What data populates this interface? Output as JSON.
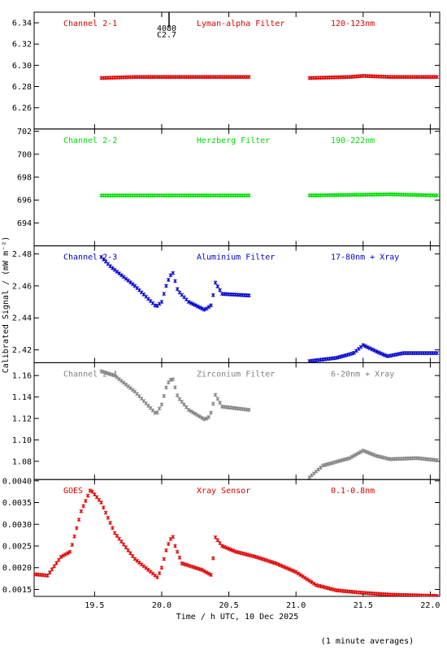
{
  "figure": {
    "ylabel": "Calibrated Signal / (mW m⁻²)",
    "xlabel": "Time / h UTC, 10 Dec 2025",
    "footnote": "(1 minute averages)",
    "marker": {
      "top": "4080",
      "bottom": "C2.7"
    }
  },
  "chart_data": [
    {
      "type": "scatter",
      "channel": "Channel 2-1",
      "filter": "Lyman-alpha Filter",
      "band": "120-123nm",
      "color": "#dd0000",
      "ylim": [
        6.24,
        6.35
      ],
      "yticks": [
        6.26,
        6.28,
        6.3,
        6.32,
        6.34
      ],
      "ytick_labels": [
        "6.26",
        "6.28",
        "6.30",
        "6.32",
        "6.34"
      ],
      "segments": [
        {
          "x_range": [
            19.55,
            20.65
          ],
          "y": [
            [
              19.55,
              6.288
            ],
            [
              19.8,
              6.289
            ],
            [
              20.2,
              6.289
            ],
            [
              20.65,
              6.289
            ]
          ]
        },
        {
          "x_range": [
            21.1,
            22.05
          ],
          "y": [
            [
              21.1,
              6.288
            ],
            [
              21.4,
              6.289
            ],
            [
              21.5,
              6.29
            ],
            [
              21.7,
              6.289
            ],
            [
              22.05,
              6.289
            ]
          ]
        }
      ]
    },
    {
      "type": "scatter",
      "channel": "Channel 2-2",
      "filter": "Herzberg Filter",
      "band": "190-222nm",
      "color": "#00dd00",
      "ylim": [
        692.0,
        702.2
      ],
      "yticks": [
        694,
        696,
        698,
        700,
        702
      ],
      "ytick_labels": [
        "694",
        "696",
        "698",
        "700",
        "702"
      ],
      "segments": [
        {
          "x_range": [
            19.55,
            20.65
          ],
          "y": [
            [
              19.55,
              696.4
            ],
            [
              20.65,
              696.4
            ]
          ]
        },
        {
          "x_range": [
            21.1,
            22.05
          ],
          "y": [
            [
              21.1,
              696.4
            ],
            [
              21.7,
              696.5
            ],
            [
              22.05,
              696.4
            ]
          ]
        }
      ]
    },
    {
      "type": "scatter",
      "channel": "Channel 2-3",
      "filter": "Aluminium Filter",
      "band": "17-80nm + Xray",
      "color": "#0000cc",
      "ylim": [
        2.412,
        2.485
      ],
      "yticks": [
        2.42,
        2.44,
        2.46,
        2.48
      ],
      "ytick_labels": [
        "2.42",
        "2.44",
        "2.46",
        "2.48"
      ],
      "segments": [
        {
          "x_range": [
            19.55,
            20.65
          ],
          "y": [
            [
              19.55,
              2.478
            ],
            [
              19.62,
              2.472
            ],
            [
              19.8,
              2.46
            ],
            [
              19.96,
              2.447
            ],
            [
              20.0,
              2.45
            ],
            [
              20.04,
              2.462
            ],
            [
              20.08,
              2.469
            ],
            [
              20.12,
              2.457
            ],
            [
              20.2,
              2.45
            ],
            [
              20.32,
              2.445
            ],
            [
              20.37,
              2.448
            ],
            [
              20.4,
              2.462
            ],
            [
              20.45,
              2.455
            ],
            [
              20.65,
              2.454
            ]
          ]
        },
        {
          "x_range": [
            21.1,
            22.05
          ],
          "y": [
            [
              21.1,
              2.413
            ],
            [
              21.3,
              2.415
            ],
            [
              21.43,
              2.418
            ],
            [
              21.5,
              2.423
            ],
            [
              21.6,
              2.419
            ],
            [
              21.68,
              2.416
            ],
            [
              21.8,
              2.418
            ],
            [
              21.9,
              2.418
            ],
            [
              22.05,
              2.418
            ]
          ]
        }
      ]
    },
    {
      "type": "scatter",
      "channel": "Channel 2-4",
      "filter": "Zirconium Filter",
      "band": "6-20nm + Xray",
      "color": "#808080",
      "ylim": [
        1.063,
        1.172
      ],
      "yticks": [
        1.08,
        1.1,
        1.12,
        1.14,
        1.16
      ],
      "ytick_labels": [
        "1.08",
        "1.10",
        "1.12",
        "1.14",
        "1.16"
      ],
      "segments": [
        {
          "x_range": [
            19.55,
            20.65
          ],
          "y": [
            [
              19.55,
              1.164
            ],
            [
              19.65,
              1.16
            ],
            [
              19.8,
              1.145
            ],
            [
              19.96,
              1.124
            ],
            [
              20.0,
              1.133
            ],
            [
              20.04,
              1.152
            ],
            [
              20.08,
              1.158
            ],
            [
              20.12,
              1.14
            ],
            [
              20.2,
              1.128
            ],
            [
              20.32,
              1.119
            ],
            [
              20.36,
              1.122
            ],
            [
              20.4,
              1.142
            ],
            [
              20.45,
              1.131
            ],
            [
              20.65,
              1.128
            ]
          ]
        },
        {
          "x_range": [
            21.1,
            22.05
          ],
          "y": [
            [
              21.1,
              1.065
            ],
            [
              21.2,
              1.076
            ],
            [
              21.4,
              1.083
            ],
            [
              21.5,
              1.09
            ],
            [
              21.6,
              1.085
            ],
            [
              21.7,
              1.082
            ],
            [
              21.9,
              1.083
            ],
            [
              22.05,
              1.081
            ]
          ]
        }
      ]
    },
    {
      "type": "scatter",
      "channel": "GOES",
      "filter": "Xray Sensor",
      "band": "0.1-0.8nm",
      "color": "#dd0000",
      "ylim": [
        0.00134,
        0.00403
      ],
      "yticks": [
        0.0015,
        0.002,
        0.0025,
        0.003,
        0.0035,
        0.004
      ],
      "ytick_labels": [
        "0.0015",
        "0.0020",
        "0.0025",
        "0.0030",
        "0.0035",
        "0.0040"
      ],
      "segments": [
        {
          "x_range": [
            19.05,
            22.05
          ],
          "y": [
            [
              19.05,
              0.00185
            ],
            [
              19.15,
              0.00182
            ],
            [
              19.25,
              0.00225
            ],
            [
              19.32,
              0.00237
            ],
            [
              19.4,
              0.0033
            ],
            [
              19.47,
              0.0038
            ],
            [
              19.55,
              0.0035
            ],
            [
              19.65,
              0.0028
            ],
            [
              19.8,
              0.0022
            ],
            [
              19.92,
              0.0019
            ],
            [
              19.97,
              0.00177
            ],
            [
              20.0,
              0.002
            ],
            [
              20.04,
              0.00248
            ],
            [
              20.08,
              0.00275
            ],
            [
              20.1,
              0.0025
            ],
            [
              20.15,
              0.0021
            ],
            [
              20.3,
              0.00195
            ],
            [
              20.37,
              0.00183
            ],
            [
              20.4,
              0.0027
            ],
            [
              20.45,
              0.0025
            ],
            [
              20.55,
              0.00237
            ],
            [
              20.7,
              0.00225
            ],
            [
              20.85,
              0.0021
            ],
            [
              21.0,
              0.0019
            ],
            [
              21.15,
              0.0016
            ],
            [
              21.3,
              0.00148
            ],
            [
              21.5,
              0.00142
            ],
            [
              21.7,
              0.00138
            ],
            [
              22.05,
              0.00135
            ]
          ]
        }
      ]
    }
  ],
  "xaxis": {
    "xlim": [
      19.05,
      22.07
    ],
    "ticks": [
      19.5,
      20.0,
      20.5,
      21.0,
      21.5,
      22.0
    ],
    "tick_labels": [
      "19.5",
      "20.0",
      "20.5",
      "21.0",
      "21.5",
      "22.0"
    ]
  }
}
